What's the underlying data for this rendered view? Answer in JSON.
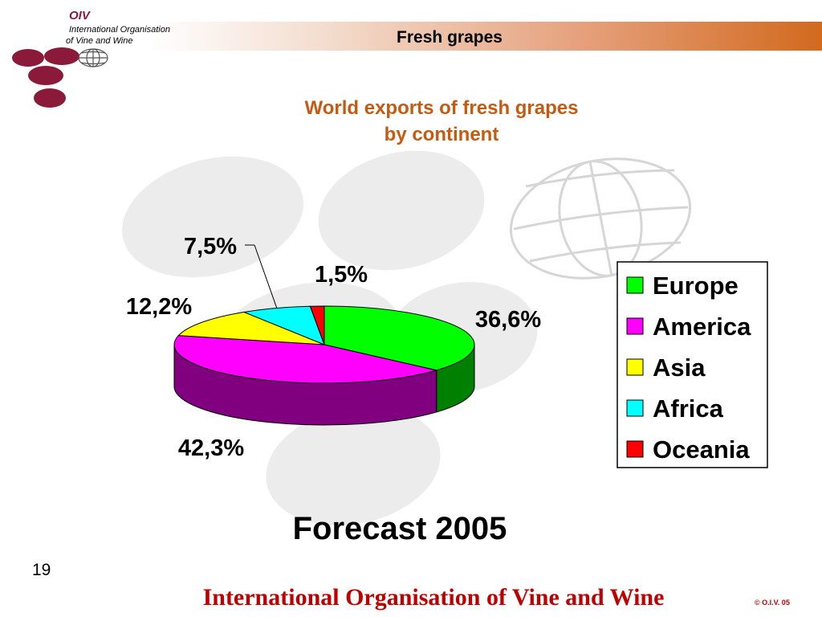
{
  "header": {
    "title": "Fresh grapes",
    "logo_abbrev": "OIV",
    "logo_line1": "International Organisation",
    "logo_line2": "of  Vine  and  Wine"
  },
  "chart_data": {
    "type": "pie",
    "title_line1": "World exports of fresh grapes",
    "title_line2": "by continent",
    "categories": [
      "Europe",
      "America",
      "Asia",
      "Africa",
      "Oceania"
    ],
    "values": [
      36.6,
      42.3,
      12.2,
      7.5,
      1.5
    ],
    "labels": [
      "36,6%",
      "42,3%",
      "12,2%",
      "7,5%",
      "1,5%"
    ],
    "colors": [
      "#00ff00",
      "#ff00ff",
      "#ffff00",
      "#00ffff",
      "#ff0000"
    ],
    "side_colors": [
      "#008000",
      "#800080",
      "#808000",
      "#008080",
      "#800000"
    ],
    "legend_position": "right",
    "style": "3d-pie"
  },
  "subtitle": "Forecast 2005",
  "footer": {
    "page_number": "19",
    "organisation": "International Organisation of Vine and Wine",
    "copyright": "© O.I.V. 05"
  }
}
